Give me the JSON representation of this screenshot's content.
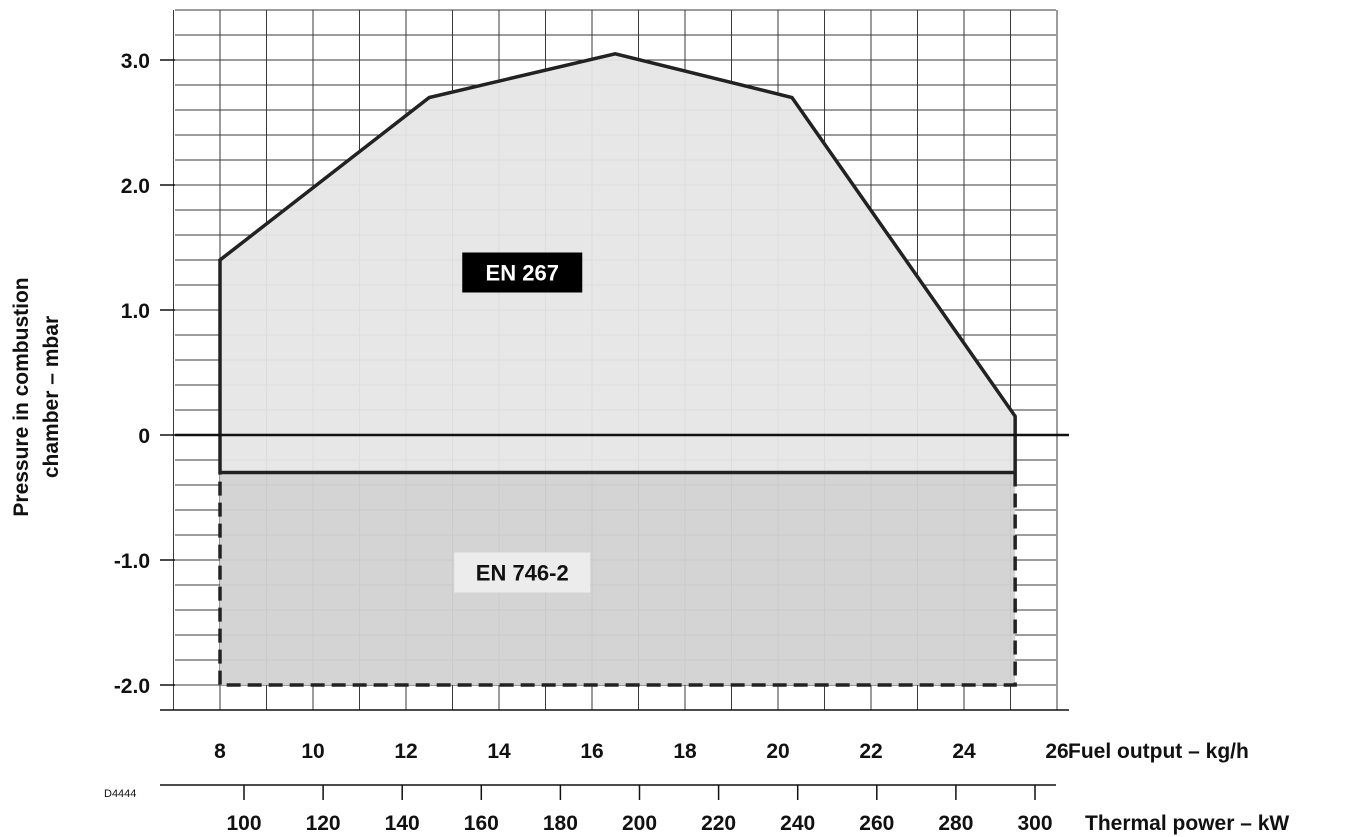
{
  "chart_data": {
    "type": "area",
    "xlabel": "Fuel output – kg/h",
    "x2label": "Thermal power –  kW",
    "ylabel_line1": "Pressure in combustion",
    "ylabel_line2": "chamber – mbar",
    "drawing_code": "D4444",
    "xlim": [
      7,
      26
    ],
    "ylim": [
      -2.2,
      3.4
    ],
    "x_ticks": [
      {
        "value": 8,
        "label": "8"
      },
      {
        "value": 10,
        "label": "10"
      },
      {
        "value": 12,
        "label": "12"
      },
      {
        "value": 14,
        "label": "14"
      },
      {
        "value": 16,
        "label": "16"
      },
      {
        "value": 18,
        "label": "18"
      },
      {
        "value": 20,
        "label": "20"
      },
      {
        "value": 22,
        "label": "22"
      },
      {
        "value": 24,
        "label": "24"
      },
      {
        "value": 26,
        "label": "26"
      }
    ],
    "x2_ticks": [
      {
        "value": 100,
        "label": "100"
      },
      {
        "value": 120,
        "label": "120"
      },
      {
        "value": 140,
        "label": "140"
      },
      {
        "value": 160,
        "label": "160"
      },
      {
        "value": 180,
        "label": "180"
      },
      {
        "value": 200,
        "label": "200"
      },
      {
        "value": 220,
        "label": "220"
      },
      {
        "value": 240,
        "label": "240"
      },
      {
        "value": 260,
        "label": "260"
      },
      {
        "value": 280,
        "label": "280"
      },
      {
        "value": 300,
        "label": "300"
      }
    ],
    "y_ticks": [
      {
        "value": 3.0,
        "label": "3.0"
      },
      {
        "value": 2.0,
        "label": "2.0"
      },
      {
        "value": 1.0,
        "label": "1.0"
      },
      {
        "value": 0,
        "label": "0"
      },
      {
        "value": -1.0,
        "label": "-1.0"
      },
      {
        "value": -2.0,
        "label": "-2.0"
      }
    ],
    "grid": true,
    "regions": [
      {
        "name": "EN 267",
        "fill": "#e6e6e6",
        "label_bg": "#000000",
        "label_color": "#ffffff",
        "label_pos": {
          "x": 14.5,
          "y": 1.3
        },
        "points": [
          [
            8,
            -0.3
          ],
          [
            8,
            1.4
          ],
          [
            12.5,
            2.7
          ],
          [
            16.5,
            3.05
          ],
          [
            20.3,
            2.7
          ],
          [
            25.1,
            0.15
          ],
          [
            25.1,
            -0.3
          ]
        ]
      },
      {
        "name": "EN 746-2",
        "fill": "#d2d2d2",
        "label_bg": "#ececec",
        "label_color": "#111111",
        "label_pos": {
          "x": 14.5,
          "y": -1.1
        },
        "points": [
          [
            8,
            -0.3
          ],
          [
            25.1,
            -0.3
          ],
          [
            25.1,
            -2.0
          ],
          [
            8,
            -2.0
          ]
        ]
      }
    ],
    "colors": {
      "line": "#222222",
      "grid": "#3a3a3a"
    }
  }
}
